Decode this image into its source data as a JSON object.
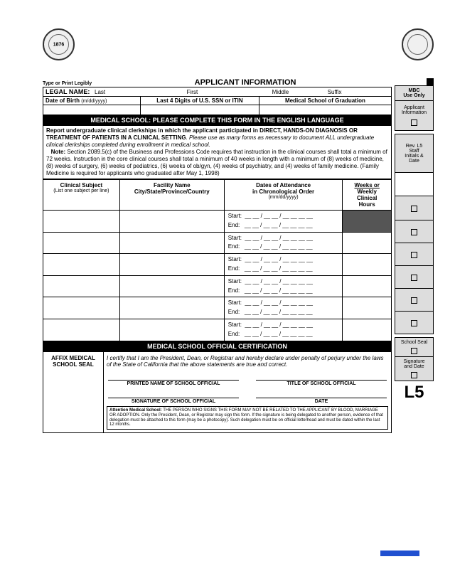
{
  "header": {
    "type_print": "Type or Print Legibly",
    "title": "APPLICANT INFORMATION",
    "mbc": "MBC\nUse Only",
    "applicant_info": "Applicant\nInformation",
    "rev": "Rev. L5\nStaff\nInitials &\nDate"
  },
  "legal_name": {
    "label": "LEGAL NAME:",
    "last": "Last",
    "first": "First",
    "middle": "Middle",
    "suffix": "Suffix"
  },
  "row2": {
    "dob": "Date of Birth",
    "dob_fmt": "(m/dd/yyyy)",
    "ssn": "Last 4 Digits of U.S. SSN or ITIN",
    "school": "Medical School of Graduation"
  },
  "medschool_header": "MEDICAL SCHOOL:  PLEASE COMPLETE THIS FORM IN THE ENGLISH LANGUAGE",
  "instructions": {
    "bold": "Report undergraduate clinical clerkships in which the applicant participated in DIRECT, HANDS-ON DIAGNOSIS OR TREATMENT OF PATIENTS IN A CLINICAL SETTING",
    "italic": ".  Please use as many forms as necessary to document ALL undergraduate clinical clerkships completed during enrollment in medical school.",
    "note_label": "Note:",
    "note": "  Section 2089.5(c) of the Business and Professions Code requires that instruction in the clinical courses shall total a minimum of 72 weeks.  Instruction in the core clinical courses shall total a minimum of 40 weeks in length with a minimum of (8) weeks of medicine, (8) weeks of surgery, (6) weeks of pediatrics, (6) weeks of ob/gyn, (4) weeks of psychiatry, and (4) weeks of family medicine.  (Family Medicine is required for applicants who graduated after May 1, 1998)"
  },
  "cols": {
    "c1": "Clinical Subject",
    "c1sub": "(List one subject per line)",
    "c2": "Facility Name\nCity/State/Province/Country",
    "c3": "Dates of Attendance\nin Chronological Order",
    "c3sub": "(mm/dd/yyyy)",
    "c4": "Weeks or\nWeekly\nClinical\nHours"
  },
  "date_templates": {
    "start": "Start:  __ __ / __ __ / __ __ __ __",
    "end": "End:   __ __ / __ __ / __ __ __ __"
  },
  "cert_header": "MEDICAL SCHOOL OFFICIAL CERTIFICATION",
  "cert": {
    "affix": "AFFIX MEDICAL SCHOOL SEAL",
    "statement": "I certify that I am the President, Dean, or Registrar and hereby declare under penalty of perjury under the laws of the State of California that the above statements are true and correct.",
    "printed_name": "PRINTED NAME OF SCHOOL OFFICIAL",
    "title_official": "TITLE OF SCHOOL OFFICIAL",
    "signature": "SIGNATURE OF SCHOOL OFFICIAL",
    "date": "DATE",
    "attention_label": "Attention Medical School:",
    "attention": "  THE PERSON WHO SIGNS THIS FORM MAY NOT BE RELATED TO THE APPLICANT BY BLOOD, MARRIAGE OR ADOPTION.  Only the President, Dean, or Registrar may sign this form.  If the signature is being delegated to another person, evidence of that delegation must be attached to this form (may be a photocopy).  Such delegation must be on official letterhead and must be dated within the last 12 months."
  },
  "side_cert": {
    "seal": "School Seal",
    "sig": "Signature\nand Date"
  },
  "form_code": "L5",
  "colors": {
    "shaded": "#555555",
    "grey": "#dddddd",
    "blue": "#2050d0"
  }
}
